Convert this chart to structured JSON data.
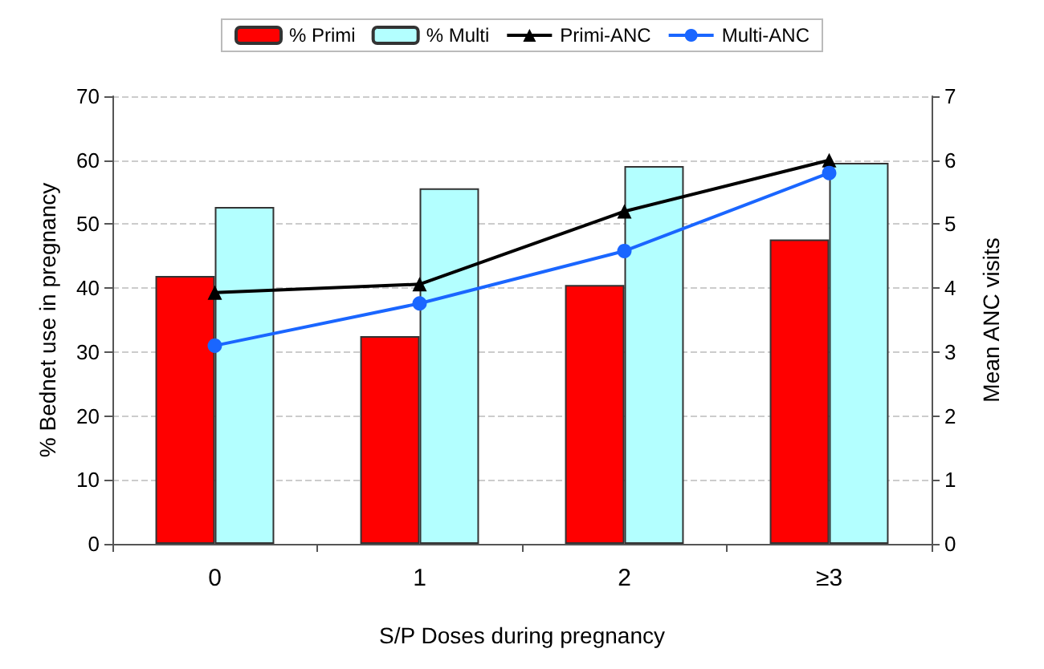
{
  "chart_data": {
    "type": "bar",
    "xlabel": "S/P Doses during pregnancy",
    "ylabel": "% Bednet use in pregnancy",
    "y2label": "Mean ANC visits",
    "categories": [
      "0",
      "1",
      "2",
      "≥3"
    ],
    "series": [
      {
        "name": "% Primi",
        "color": "#ff0000",
        "values": [
          41.9,
          32.5,
          40.5,
          47.6
        ]
      },
      {
        "name": "% Multi",
        "color": "#b3ffff",
        "values": [
          52.7,
          55.6,
          59.1,
          59.6
        ]
      },
      {
        "name": "Primi-ANC",
        "type": "line",
        "axis": "y2",
        "marker": "triangle",
        "color": "#000000",
        "values": [
          3.93,
          4.06,
          5.2,
          6.0
        ]
      },
      {
        "name": "Multi-ANC",
        "type": "line",
        "axis": "y2",
        "marker": "circle",
        "color": "#1a66ff",
        "values": [
          3.1,
          3.76,
          4.58,
          5.8
        ]
      }
    ],
    "ylim": [
      0,
      70
    ],
    "yticks": [
      0,
      10,
      20,
      30,
      40,
      50,
      60,
      70
    ],
    "y2lim": [
      0,
      7
    ],
    "y2ticks": [
      0,
      1,
      2,
      3,
      4,
      5,
      6,
      7
    ],
    "grid": "y",
    "legend": "top"
  }
}
